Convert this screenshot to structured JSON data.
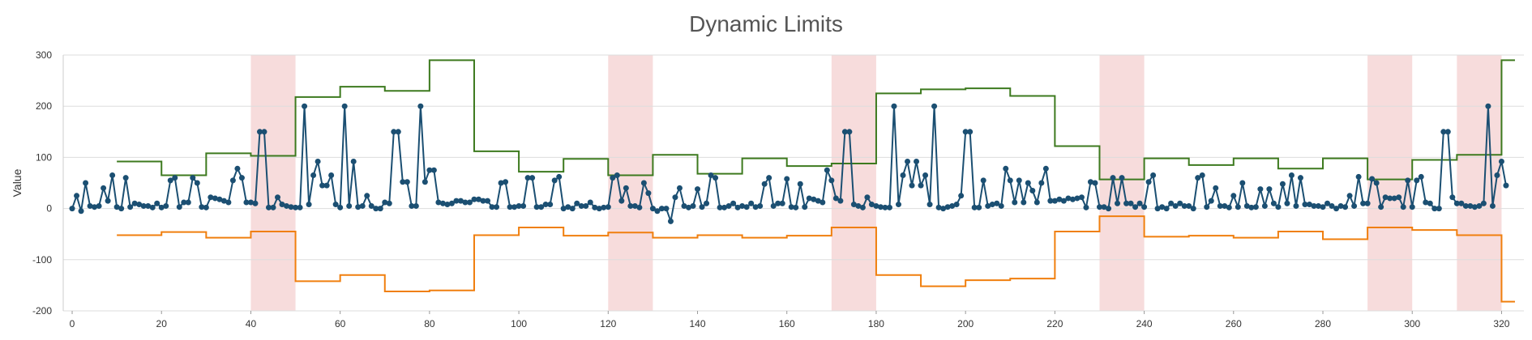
{
  "chart_data": {
    "type": "line",
    "title": "Dynamic Limits",
    "xlabel": "",
    "ylabel": "Value",
    "xlim": [
      -2,
      325
    ],
    "ylim": [
      -200,
      300
    ],
    "x_ticks": [
      0,
      20,
      40,
      60,
      80,
      100,
      120,
      140,
      160,
      180,
      200,
      220,
      240,
      260,
      280,
      300,
      320
    ],
    "y_ticks": [
      -200,
      -100,
      0,
      100,
      200,
      300
    ],
    "grid": true,
    "colors": {
      "value": "#1b4f72",
      "upper": "#3d7a1f",
      "lower": "#f07f0e",
      "band": "#f7dcdc",
      "grid": "#dddddd"
    },
    "highlight_bands": [
      [
        40,
        50
      ],
      [
        120,
        130
      ],
      [
        170,
        180
      ],
      [
        230,
        240
      ],
      [
        290,
        300
      ],
      [
        310,
        320
      ]
    ],
    "series": [
      {
        "role": "value",
        "values": [
          0,
          25,
          -5,
          50,
          5,
          3,
          5,
          40,
          15,
          65,
          3,
          0,
          60,
          3,
          10,
          8,
          5,
          5,
          2,
          10,
          2,
          5,
          55,
          60,
          3,
          12,
          12,
          60,
          50,
          3,
          2,
          22,
          20,
          18,
          15,
          12,
          55,
          78,
          60,
          12,
          12,
          10,
          150,
          150,
          2,
          2,
          22,
          8,
          5,
          3,
          2,
          2,
          200,
          8,
          65,
          92,
          45,
          45,
          65,
          8,
          2,
          200,
          5,
          92,
          3,
          5,
          25,
          5,
          0,
          0,
          12,
          10,
          150,
          150,
          52,
          52,
          5,
          5,
          200,
          52,
          75,
          75,
          12,
          10,
          8,
          10,
          15,
          15,
          12,
          12,
          18,
          18,
          15,
          15,
          3,
          3,
          50,
          52,
          3,
          3,
          5,
          5,
          60,
          60,
          3,
          3,
          8,
          8,
          55,
          62,
          0,
          3,
          0,
          10,
          5,
          5,
          12,
          2,
          0,
          2,
          3,
          60,
          65,
          15,
          40,
          5,
          5,
          2,
          50,
          30,
          0,
          -5,
          0,
          0,
          -25,
          22,
          40,
          5,
          2,
          5,
          38,
          3,
          10,
          65,
          60,
          2,
          2,
          5,
          10,
          2,
          5,
          3,
          10,
          3,
          5,
          48,
          60,
          5,
          10,
          10,
          58,
          3,
          2,
          48,
          3,
          20,
          18,
          15,
          12,
          75,
          55,
          20,
          15,
          150,
          150,
          8,
          5,
          2,
          22,
          8,
          5,
          3,
          2,
          2,
          200,
          8,
          65,
          92,
          45,
          92,
          45,
          65,
          8,
          200,
          2,
          0,
          3,
          5,
          8,
          25,
          150,
          150,
          2,
          2,
          55,
          5,
          8,
          10,
          5,
          78,
          55,
          12,
          55,
          12,
          50,
          35,
          12,
          50,
          78,
          15,
          15,
          18,
          15,
          20,
          18,
          20,
          22,
          2,
          52,
          50,
          3,
          3,
          0,
          60,
          10,
          60,
          10,
          10,
          3,
          10,
          3,
          52,
          65,
          0,
          3,
          0,
          10,
          5,
          10,
          5,
          5,
          0,
          60,
          65,
          3,
          15,
          40,
          5,
          5,
          2,
          25,
          3,
          50,
          5,
          2,
          3,
          38,
          5,
          38,
          10,
          3,
          48,
          10,
          65,
          5,
          60,
          8,
          8,
          5,
          5,
          3,
          10,
          5,
          0,
          5,
          3,
          25,
          5,
          62,
          10,
          10,
          58,
          50,
          3,
          22,
          20,
          20,
          22,
          3,
          55,
          3,
          55,
          62,
          12,
          10,
          0,
          0,
          150,
          150,
          22,
          10,
          10,
          5,
          5,
          3,
          5,
          10,
          200,
          5,
          65,
          92,
          45
        ]
      },
      {
        "role": "upper",
        "steps": [
          [
            10,
            92
          ],
          [
            20,
            65
          ],
          [
            30,
            108
          ],
          [
            40,
            103
          ],
          [
            50,
            218
          ],
          [
            60,
            238
          ],
          [
            70,
            230
          ],
          [
            80,
            290
          ],
          [
            90,
            112
          ],
          [
            100,
            72
          ],
          [
            110,
            97
          ],
          [
            120,
            65
          ],
          [
            130,
            105
          ],
          [
            140,
            68
          ],
          [
            150,
            98
          ],
          [
            160,
            83
          ],
          [
            170,
            88
          ],
          [
            180,
            225
          ],
          [
            190,
            233
          ],
          [
            200,
            235
          ],
          [
            210,
            220
          ],
          [
            220,
            122
          ],
          [
            230,
            57
          ],
          [
            240,
            98
          ],
          [
            250,
            85
          ],
          [
            260,
            98
          ],
          [
            270,
            78
          ],
          [
            280,
            98
          ],
          [
            290,
            57
          ],
          [
            300,
            95
          ],
          [
            310,
            105
          ],
          [
            320,
            290
          ],
          [
            323,
            290
          ]
        ]
      },
      {
        "role": "lower",
        "steps": [
          [
            10,
            -52
          ],
          [
            20,
            -46
          ],
          [
            30,
            -57
          ],
          [
            40,
            -45
          ],
          [
            50,
            -142
          ],
          [
            60,
            -130
          ],
          [
            70,
            -162
          ],
          [
            80,
            -160
          ],
          [
            90,
            -52
          ],
          [
            100,
            -37
          ],
          [
            110,
            -53
          ],
          [
            120,
            -47
          ],
          [
            130,
            -57
          ],
          [
            140,
            -52
          ],
          [
            150,
            -57
          ],
          [
            160,
            -53
          ],
          [
            170,
            -37
          ],
          [
            180,
            -130
          ],
          [
            190,
            -152
          ],
          [
            200,
            -140
          ],
          [
            210,
            -137
          ],
          [
            220,
            -45
          ],
          [
            230,
            -15
          ],
          [
            240,
            -55
          ],
          [
            250,
            -53
          ],
          [
            260,
            -57
          ],
          [
            270,
            -45
          ],
          [
            280,
            -60
          ],
          [
            290,
            -37
          ],
          [
            300,
            -42
          ],
          [
            310,
            -52
          ],
          [
            320,
            -182
          ],
          [
            323,
            -182
          ]
        ]
      }
    ]
  }
}
